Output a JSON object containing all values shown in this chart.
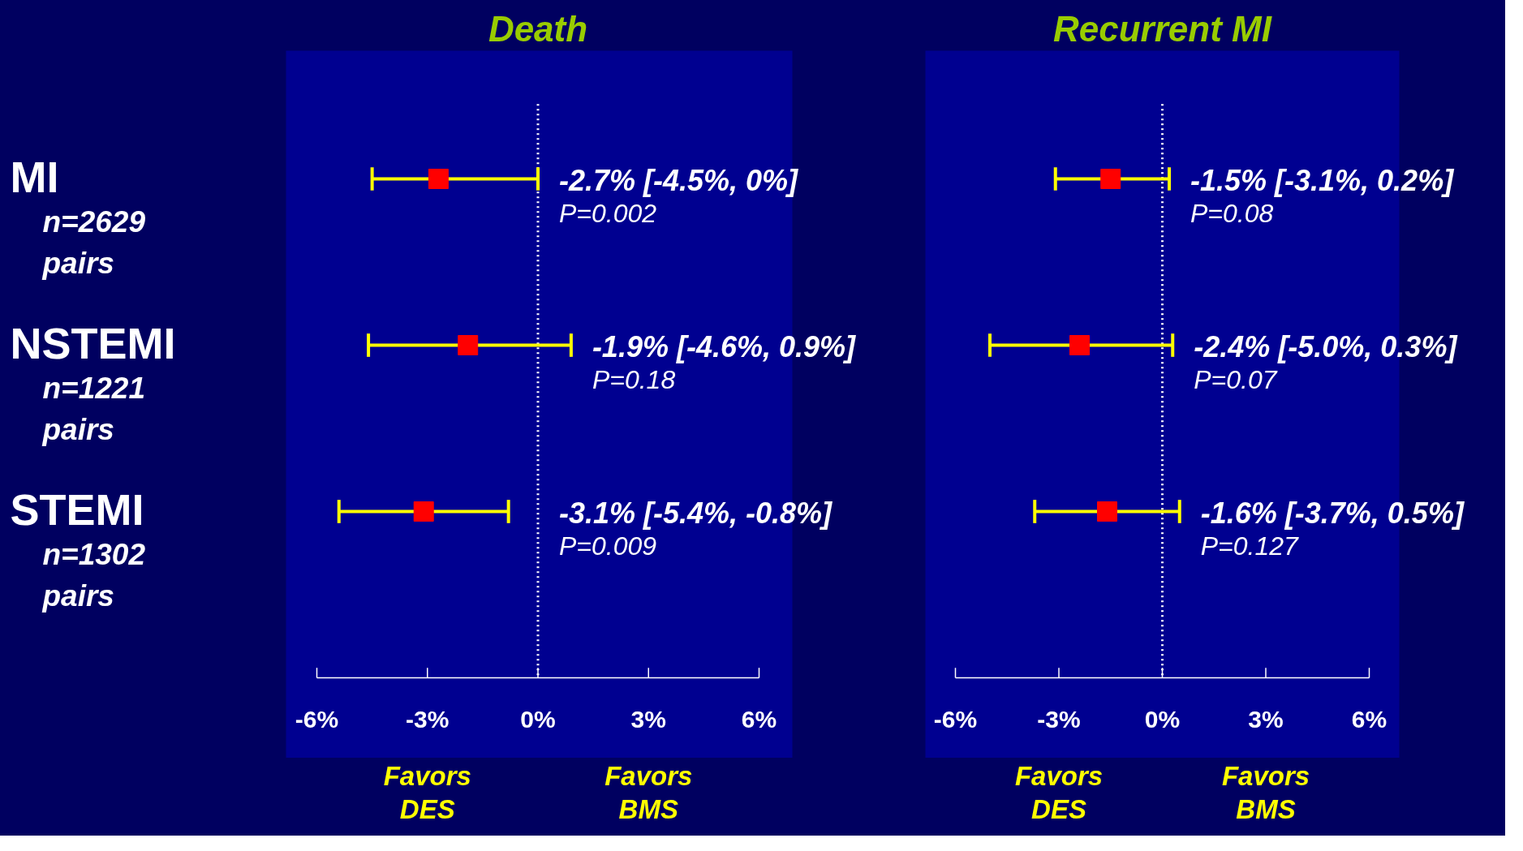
{
  "chart_data": [
    {
      "type": "scatter",
      "title": "Death",
      "orientation": "horizontal",
      "categories": [
        "MI",
        "NSTEMI",
        "STEMI"
      ],
      "marker": "square",
      "grid": false,
      "series": [
        {
          "color": "#ff0000",
          "values": [
            -2.7,
            -1.9,
            -3.1
          ],
          "errors": [
            [
              -4.5,
              0
            ],
            [
              -4.6,
              0.9
            ],
            [
              -5.4,
              -0.8
            ]
          ]
        }
      ],
      "xlim": [
        -6,
        6
      ],
      "xticks": [
        {
          "value": -6,
          "label": "-6%"
        },
        {
          "value": -3,
          "label": "-3%"
        },
        {
          "value": 0,
          "label": "0%"
        },
        {
          "value": 3,
          "label": "3%"
        },
        {
          "value": 6,
          "label": "6%"
        }
      ],
      "ref_lines": [
        {
          "axis": "x",
          "value": 0,
          "color": "#ffffff",
          "line_style": "dotted"
        }
      ],
      "annotations": [
        "-2.7% [-4.5%, 0%]",
        "-1.9% [-4.6%, 0.9%]",
        "-3.1% [-5.4%, -0.8%]",
        "P=0.002",
        "P=0.18",
        "P=0.009",
        "n=2629\npairs",
        "n=1221\npairs",
        "n=1302\npairs",
        "Favors\nDES",
        "Favors\nBMS"
      ]
    },
    {
      "type": "scatter",
      "title": "Recurrent MI",
      "orientation": "horizontal",
      "categories": [
        null,
        null,
        null
      ],
      "marker": "square",
      "grid": false,
      "tick_labels": "x",
      "series": [
        {
          "color": "#ff0000",
          "values": [
            -1.5,
            -2.4,
            -1.6
          ],
          "errors": [
            [
              -3.1,
              0.2
            ],
            [
              -5.0,
              0.3
            ],
            [
              -3.7,
              0.5
            ]
          ]
        }
      ],
      "xlim": [
        -6,
        6
      ],
      "xticks": [
        {
          "value": -6,
          "label": "-6%"
        },
        {
          "value": -3,
          "label": "-3%"
        },
        {
          "value": 0,
          "label": "0%"
        },
        {
          "value": 3,
          "label": "3%"
        },
        {
          "value": 6,
          "label": "6%"
        }
      ],
      "ref_lines": [
        {
          "axis": "x",
          "value": 0,
          "color": "#ffffff",
          "line_style": "dotted"
        }
      ],
      "annotations": [
        "-1.5% [-3.1%, 0.2%]",
        "-2.4% [-5.0%, 0.3%]",
        "-1.6% [-3.7%, 0.5%]",
        "P=0.08",
        "P=0.07",
        "P=0.127",
        "Favors\nDES",
        "Favors\nBMS"
      ]
    }
  ]
}
